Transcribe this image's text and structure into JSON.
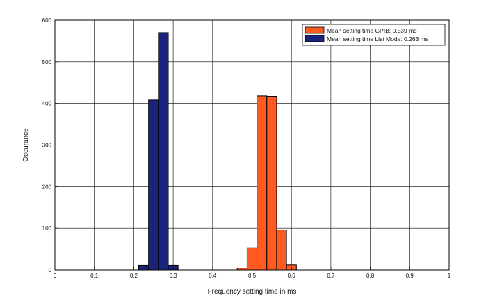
{
  "chart_data": {
    "type": "bar",
    "title": "",
    "xlabel": "Frequency setting time in ms",
    "ylabel": "Occurance",
    "xlim": [
      0,
      1
    ],
    "ylim": [
      0,
      600
    ],
    "x_ticks": [
      0,
      0.1,
      0.2,
      0.3,
      0.4,
      0.5,
      0.6,
      0.7,
      0.8,
      0.9,
      1
    ],
    "x_tick_labels": [
      "0",
      "0.1",
      "0.2",
      "0.3",
      "0.4",
      "0.5",
      "0.6",
      "0.7",
      "0.8",
      "0.9",
      "1"
    ],
    "y_ticks": [
      0,
      100,
      200,
      300,
      400,
      500,
      600
    ],
    "y_tick_labels": [
      "0",
      "100",
      "200",
      "300",
      "400",
      "500",
      "600"
    ],
    "grid": true,
    "legend_position": "top-right",
    "bin_width": 0.025,
    "series": [
      {
        "name": "Mean setting time GPIB: 0.539 ms",
        "color": "#ff5a1f",
        "bins": [
          {
            "x0": 0.4625,
            "value": 4
          },
          {
            "x0": 0.4875,
            "value": 53
          },
          {
            "x0": 0.5125,
            "value": 418
          },
          {
            "x0": 0.5375,
            "value": 417
          },
          {
            "x0": 0.5625,
            "value": 96
          },
          {
            "x0": 0.5875,
            "value": 12
          }
        ]
      },
      {
        "name": "Mean setting time List Mode: 0.263 ms",
        "color": "#1a237e",
        "bins": [
          {
            "x0": 0.2125,
            "value": 11
          },
          {
            "x0": 0.2375,
            "value": 408
          },
          {
            "x0": 0.2625,
            "value": 570
          },
          {
            "x0": 0.2875,
            "value": 11
          }
        ]
      }
    ]
  }
}
